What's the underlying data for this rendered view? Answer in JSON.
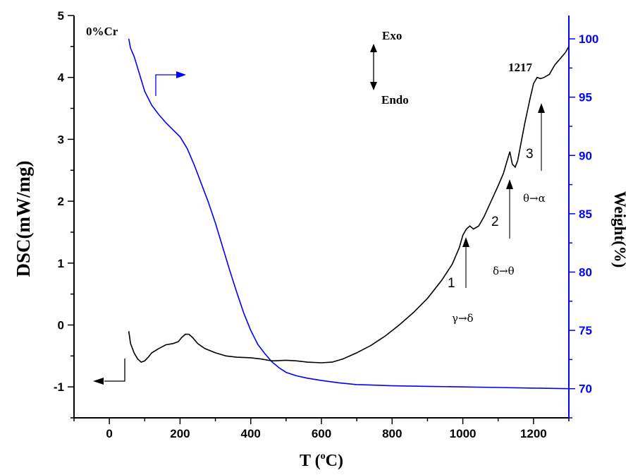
{
  "chart_data": {
    "type": "line",
    "title": "",
    "xlabel_base": "T (",
    "xlabel_sup": "o",
    "xlabel_end": "C)",
    "ylabel_left": "DSC(mW/mg)",
    "ylabel_right": "Weight(%)",
    "xlim": [
      -100,
      1300
    ],
    "ylim_left": [
      -1.5,
      5
    ],
    "ylim_right": [
      67.5,
      102
    ],
    "x_ticks": [
      0,
      200,
      400,
      600,
      800,
      1000,
      1200
    ],
    "y_left_ticks": [
      -1,
      0,
      1,
      2,
      3,
      4,
      5
    ],
    "y_right_ticks": [
      70,
      75,
      80,
      85,
      90,
      95,
      100
    ],
    "series": [
      {
        "axis": "left",
        "color": "#000000",
        "points": [
          [
            55,
            -0.1
          ],
          [
            60,
            -0.3
          ],
          [
            70,
            -0.45
          ],
          [
            80,
            -0.55
          ],
          [
            90,
            -0.6
          ],
          [
            100,
            -0.58
          ],
          [
            110,
            -0.52
          ],
          [
            120,
            -0.45
          ],
          [
            140,
            -0.38
          ],
          [
            160,
            -0.32
          ],
          [
            180,
            -0.3
          ],
          [
            195,
            -0.27
          ],
          [
            205,
            -0.2
          ],
          [
            215,
            -0.15
          ],
          [
            225,
            -0.15
          ],
          [
            235,
            -0.2
          ],
          [
            250,
            -0.3
          ],
          [
            270,
            -0.38
          ],
          [
            300,
            -0.45
          ],
          [
            330,
            -0.5
          ],
          [
            360,
            -0.52
          ],
          [
            400,
            -0.53
          ],
          [
            430,
            -0.55
          ],
          [
            460,
            -0.58
          ],
          [
            500,
            -0.57
          ],
          [
            530,
            -0.58
          ],
          [
            560,
            -0.6
          ],
          [
            600,
            -0.61
          ],
          [
            630,
            -0.6
          ],
          [
            660,
            -0.55
          ],
          [
            700,
            -0.45
          ],
          [
            740,
            -0.33
          ],
          [
            780,
            -0.18
          ],
          [
            820,
            0.0
          ],
          [
            860,
            0.2
          ],
          [
            900,
            0.43
          ],
          [
            940,
            0.72
          ],
          [
            970,
            0.98
          ],
          [
            990,
            1.25
          ],
          [
            1000,
            1.45
          ],
          [
            1010,
            1.55
          ],
          [
            1020,
            1.6
          ],
          [
            1030,
            1.55
          ],
          [
            1045,
            1.6
          ],
          [
            1060,
            1.75
          ],
          [
            1080,
            2.0
          ],
          [
            1100,
            2.25
          ],
          [
            1115,
            2.45
          ],
          [
            1125,
            2.65
          ],
          [
            1133,
            2.8
          ],
          [
            1140,
            2.6
          ],
          [
            1148,
            2.55
          ],
          [
            1155,
            2.65
          ],
          [
            1165,
            2.95
          ],
          [
            1175,
            3.25
          ],
          [
            1190,
            3.65
          ],
          [
            1200,
            3.9
          ],
          [
            1210,
            4.0
          ],
          [
            1220,
            3.98
          ],
          [
            1230,
            4.0
          ],
          [
            1245,
            4.05
          ],
          [
            1260,
            4.2
          ],
          [
            1275,
            4.3
          ],
          [
            1290,
            4.4
          ],
          [
            1300,
            4.5
          ]
        ]
      },
      {
        "axis": "right",
        "color": "#0000ff",
        "points": [
          [
            55,
            100
          ],
          [
            60,
            99.2
          ],
          [
            70,
            98.5
          ],
          [
            80,
            97.5
          ],
          [
            90,
            96.5
          ],
          [
            100,
            95.5
          ],
          [
            120,
            94.3
          ],
          [
            140,
            93.5
          ],
          [
            160,
            92.8
          ],
          [
            180,
            92.2
          ],
          [
            200,
            91.6
          ],
          [
            220,
            90.6
          ],
          [
            240,
            89.2
          ],
          [
            260,
            87.6
          ],
          [
            280,
            86.0
          ],
          [
            300,
            84.2
          ],
          [
            320,
            82.2
          ],
          [
            340,
            80.2
          ],
          [
            360,
            78.3
          ],
          [
            380,
            76.5
          ],
          [
            400,
            75.0
          ],
          [
            420,
            73.8
          ],
          [
            440,
            73.0
          ],
          [
            460,
            72.3
          ],
          [
            480,
            71.8
          ],
          [
            500,
            71.4
          ],
          [
            530,
            71.1
          ],
          [
            560,
            70.9
          ],
          [
            600,
            70.7
          ],
          [
            650,
            70.5
          ],
          [
            700,
            70.35
          ],
          [
            750,
            70.3
          ],
          [
            800,
            70.25
          ],
          [
            900,
            70.2
          ],
          [
            1000,
            70.15
          ],
          [
            1100,
            70.1
          ],
          [
            1200,
            70.05
          ],
          [
            1300,
            70.0
          ]
        ]
      }
    ],
    "annotations": {
      "sample": "0%Cr",
      "exo": "Exo",
      "endo": "Endo",
      "temp_peak": "1217",
      "peak1": "1",
      "peak2": "2",
      "peak3": "3",
      "trans1": "γ→δ",
      "trans2": "δ→θ",
      "trans3": "θ→α"
    },
    "colors": {
      "dsc": "#000000",
      "weight": "#0000ff",
      "right_axis": "#0000ff"
    }
  }
}
